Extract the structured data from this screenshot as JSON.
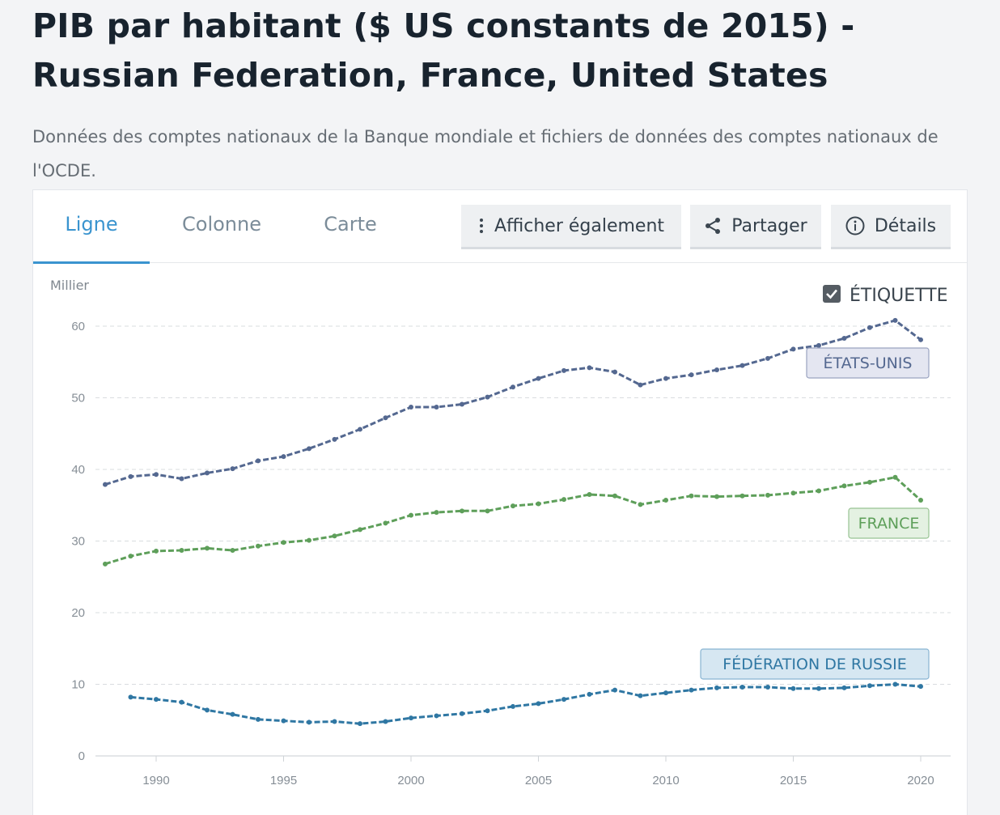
{
  "header": {
    "title": "PIB par habitant ($ US constants de 2015) - Russian Federation, France, United States",
    "subtitle": "Données des comptes nationaux de la Banque mondiale et fichiers de données des comptes nationaux de l'OCDE."
  },
  "tabs": [
    {
      "label": "Ligne",
      "active": true
    },
    {
      "label": "Colonne",
      "active": false
    },
    {
      "label": "Carte",
      "active": false
    }
  ],
  "toolbar": {
    "show_also_label": "Afficher également",
    "share_label": "Partager",
    "details_label": "Détails",
    "show_also_icon": "vertical-ellipsis-icon",
    "share_icon": "share-icon",
    "details_icon": "info-icon"
  },
  "label_toggle": {
    "label": "ÉTIQUETTE",
    "checked": true
  },
  "colors": {
    "accent": "#3a94cf",
    "united_states": "#546890",
    "france": "#5e9f5a",
    "russia": "#2f77a3"
  },
  "chart_data": {
    "type": "line",
    "ylabel": "Millier",
    "ylim": [
      0,
      60
    ],
    "yticks": [
      0,
      10,
      20,
      30,
      40,
      50,
      60
    ],
    "xlim": [
      1988,
      2020
    ],
    "xticks": [
      1990,
      1995,
      2000,
      2005,
      2010,
      2015,
      2020
    ],
    "grid": true,
    "series": [
      {
        "name": "ÉTATS-UNIS",
        "key": "united_states",
        "x": [
          1988,
          1989,
          1990,
          1991,
          1992,
          1993,
          1994,
          1995,
          1996,
          1997,
          1998,
          1999,
          2000,
          2001,
          2002,
          2003,
          2004,
          2005,
          2006,
          2007,
          2008,
          2009,
          2010,
          2011,
          2012,
          2013,
          2014,
          2015,
          2016,
          2017,
          2018,
          2019,
          2020
        ],
        "values": [
          37.9,
          39.0,
          39.3,
          38.7,
          39.5,
          40.1,
          41.2,
          41.8,
          42.9,
          44.2,
          45.6,
          47.2,
          48.7,
          48.7,
          49.1,
          50.1,
          51.5,
          52.7,
          53.8,
          54.2,
          53.6,
          51.8,
          52.7,
          53.2,
          53.9,
          54.5,
          55.5,
          56.8,
          57.3,
          58.3,
          59.8,
          60.8,
          58.1
        ]
      },
      {
        "name": "FRANCE",
        "key": "france",
        "x": [
          1988,
          1989,
          1990,
          1991,
          1992,
          1993,
          1994,
          1995,
          1996,
          1997,
          1998,
          1999,
          2000,
          2001,
          2002,
          2003,
          2004,
          2005,
          2006,
          2007,
          2008,
          2009,
          2010,
          2011,
          2012,
          2013,
          2014,
          2015,
          2016,
          2017,
          2018,
          2019,
          2020
        ],
        "values": [
          26.8,
          27.9,
          28.6,
          28.7,
          29.0,
          28.7,
          29.3,
          29.8,
          30.1,
          30.7,
          31.6,
          32.5,
          33.6,
          34.0,
          34.2,
          34.2,
          34.9,
          35.2,
          35.8,
          36.5,
          36.3,
          35.1,
          35.7,
          36.3,
          36.2,
          36.3,
          36.4,
          36.7,
          37.0,
          37.7,
          38.2,
          38.9,
          35.7
        ]
      },
      {
        "name": "FÉDÉRATION DE RUSSIE",
        "key": "russia",
        "x": [
          1989,
          1990,
          1991,
          1992,
          1993,
          1994,
          1995,
          1996,
          1997,
          1998,
          1999,
          2000,
          2001,
          2002,
          2003,
          2004,
          2005,
          2006,
          2007,
          2008,
          2009,
          2010,
          2011,
          2012,
          2013,
          2014,
          2015,
          2016,
          2017,
          2018,
          2019,
          2020
        ],
        "values": [
          8.2,
          7.9,
          7.5,
          6.4,
          5.8,
          5.1,
          4.9,
          4.7,
          4.8,
          4.5,
          4.8,
          5.3,
          5.6,
          5.9,
          6.3,
          6.9,
          7.3,
          7.9,
          8.6,
          9.2,
          8.4,
          8.8,
          9.2,
          9.5,
          9.6,
          9.6,
          9.4,
          9.4,
          9.5,
          9.8,
          10.0,
          9.7
        ]
      }
    ]
  }
}
